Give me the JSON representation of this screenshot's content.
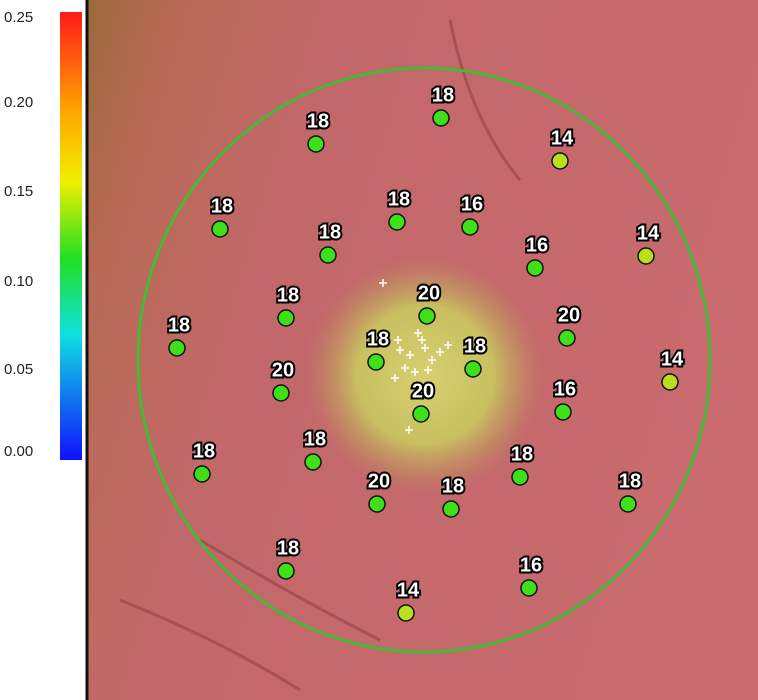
{
  "colorbar": {
    "ticks": [
      "0.25",
      "0.20",
      "0.15",
      "0.10",
      "0.05",
      "0.00"
    ]
  },
  "points": [
    {
      "label": "18",
      "color": "#3ee01a"
    },
    {
      "label": "14",
      "color": "#b8e020"
    },
    {
      "label": "18",
      "color": "#3ee01a"
    },
    {
      "label": "18",
      "color": "#3ee01a"
    },
    {
      "label": "18",
      "color": "#3ee01a"
    },
    {
      "label": "16",
      "color": "#3ee01a"
    },
    {
      "label": "18",
      "color": "#3ee01a"
    },
    {
      "label": "16",
      "color": "#3ee01a"
    },
    {
      "label": "14",
      "color": "#b8e020"
    },
    {
      "label": "18",
      "color": "#3ee01a"
    },
    {
      "label": "20",
      "color": "#3ee01a"
    },
    {
      "label": "20",
      "color": "#3ee01a"
    },
    {
      "label": "18",
      "color": "#3ee01a"
    },
    {
      "label": "18",
      "color": "#3ee01a"
    },
    {
      "label": "18",
      "color": "#3ee01a"
    },
    {
      "label": "14",
      "color": "#b8e020"
    },
    {
      "label": "20",
      "color": "#3ee01a"
    },
    {
      "label": "20",
      "color": "#3ee01a"
    },
    {
      "label": "16",
      "color": "#3ee01a"
    },
    {
      "label": "18",
      "color": "#3ee01a"
    },
    {
      "label": "18",
      "color": "#3ee01a"
    },
    {
      "label": "18",
      "color": "#3ee01a"
    },
    {
      "label": "20",
      "color": "#3ee01a"
    },
    {
      "label": "18",
      "color": "#3ee01a"
    },
    {
      "label": "18",
      "color": "#3ee01a"
    },
    {
      "label": "18",
      "color": "#3ee01a"
    },
    {
      "label": "16",
      "color": "#3ee01a"
    },
    {
      "label": "14",
      "color": "#b8e020"
    }
  ]
}
